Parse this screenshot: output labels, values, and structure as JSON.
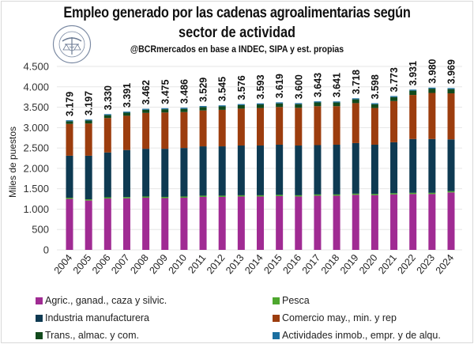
{
  "title_line1": "Empleo generado por las cadenas agroalimentarias según",
  "title_line2": "sector de actividad",
  "subtitle": "@BCRmercados en base a INDEC, SIPA y est. propias",
  "logo": {
    "name": "bolsa-de-comercio-de-rosario-seal",
    "text": "BOLSA DE COMERCIO DE ROSARIO"
  },
  "chart_data": {
    "type": "bar",
    "stacked": true,
    "title": "Empleo generado por las cadenas agroalimentarias según sector de actividad",
    "subtitle": "@BCRmercados en base a INDEC, SIPA y est. propias",
    "xlabel": "",
    "ylabel": "Miles de puestos",
    "ylim": [
      0,
      4500
    ],
    "yticks": [
      0,
      500,
      1000,
      1500,
      2000,
      2500,
      3000,
      3500,
      4000,
      4500
    ],
    "ytick_labels": [
      "0",
      "500",
      "1.000",
      "1.500",
      "2.000",
      "2.500",
      "3.000",
      "3.500",
      "4.000",
      "4.500"
    ],
    "grid": true,
    "legend_position": "bottom",
    "categories": [
      "2004",
      "2005",
      "2006",
      "2007",
      "2008",
      "2009",
      "2010",
      "2011",
      "2012",
      "2013",
      "2014",
      "2015",
      "2016",
      "2017",
      "2018",
      "2019",
      "2020",
      "2021",
      "2022",
      "2023",
      "2024"
    ],
    "totals": [
      3179,
      3197,
      3330,
      3391,
      3462,
      3475,
      3486,
      3529,
      3545,
      3576,
      3593,
      3619,
      3600,
      3643,
      3641,
      3718,
      3598,
      3773,
      3931,
      3980,
      3969
    ],
    "total_labels": [
      "3.179",
      "3.197",
      "3.330",
      "3.391",
      "3.462",
      "3.475",
      "3.486",
      "3.529",
      "3.545",
      "3.576",
      "3.593",
      "3.619",
      "3.600",
      "3.643",
      "3.641",
      "3.718",
      "3.598",
      "3.773",
      "3.931",
      "3.980",
      "3.969"
    ],
    "series": [
      {
        "name": "Agric., ganad., caza y silvic.",
        "color": "#a02b93",
        "values": [
          1250,
          1210,
          1260,
          1265,
          1280,
          1270,
          1280,
          1300,
          1300,
          1310,
          1310,
          1320,
          1310,
          1330,
          1330,
          1350,
          1340,
          1360,
          1370,
          1370,
          1410
        ]
      },
      {
        "name": "Pesca",
        "color": "#4ea72e",
        "values": [
          30,
          30,
          30,
          30,
          30,
          30,
          30,
          30,
          30,
          30,
          30,
          30,
          30,
          30,
          30,
          30,
          30,
          30,
          30,
          30,
          30
        ]
      },
      {
        "name": "Industria manufacturera",
        "color": "#0e3a52",
        "values": [
          1030,
          1070,
          1100,
          1155,
          1170,
          1180,
          1190,
          1210,
          1210,
          1220,
          1220,
          1230,
          1220,
          1210,
          1220,
          1240,
          1210,
          1250,
          1320,
          1320,
          1270
        ]
      },
      {
        "name": "Comercio may., min. y rep",
        "color": "#9c3d0e",
        "values": [
          780,
          790,
          845,
          840,
          880,
          890,
          880,
          880,
          895,
          905,
          920,
          925,
          925,
          955,
          945,
          980,
          900,
          1010,
          1080,
          1130,
          1130
        ]
      },
      {
        "name": "Trans., almac. y com.",
        "color": "#124a1c",
        "values": [
          65,
          73,
          70,
          76,
          77,
          80,
          80,
          84,
          85,
          86,
          88,
          88,
          90,
          93,
          91,
          93,
          93,
          98,
          106,
          105,
          104
        ]
      },
      {
        "name": "Actividades inmob., empr. y de alqu.",
        "color": "#1b6fa0",
        "values": [
          24,
          24,
          25,
          25,
          25,
          25,
          26,
          25,
          25,
          25,
          25,
          26,
          25,
          25,
          25,
          25,
          25,
          25,
          25,
          25,
          25
        ]
      }
    ]
  },
  "legend": [
    {
      "label": "Agric., ganad., caza y silvic.",
      "color": "#a02b93"
    },
    {
      "label": "Pesca",
      "color": "#4ea72e"
    },
    {
      "label": "Industria manufacturera",
      "color": "#0e3a52"
    },
    {
      "label": "Comercio may., min. y rep",
      "color": "#9c3d0e"
    },
    {
      "label": "Trans., almac. y com.",
      "color": "#124a1c"
    },
    {
      "label": "Actividades inmob., empr. y de alqu.",
      "color": "#1b6fa0"
    }
  ]
}
